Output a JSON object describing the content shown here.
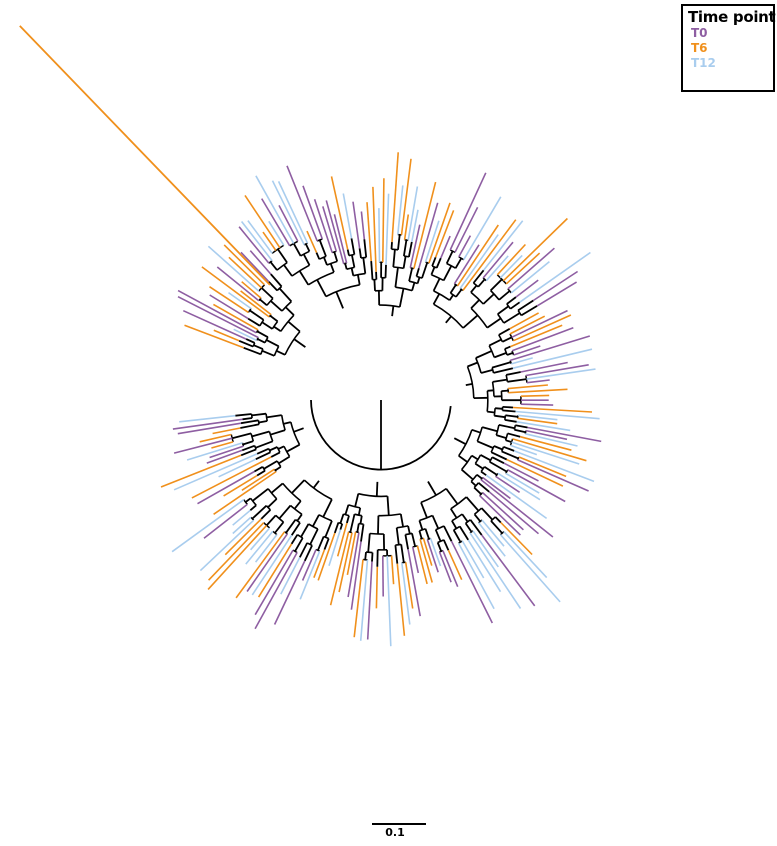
{
  "legend": {
    "title": "Time point",
    "items": [
      {
        "label": "T0",
        "color": "#8e5ea2"
      },
      {
        "label": "T6",
        "color": "#f0901c"
      },
      {
        "label": "T12",
        "color": "#a9cdee"
      }
    ]
  },
  "scale_bar": {
    "label": "0.1"
  },
  "colors": {
    "internal_branch": "#000000"
  }
}
